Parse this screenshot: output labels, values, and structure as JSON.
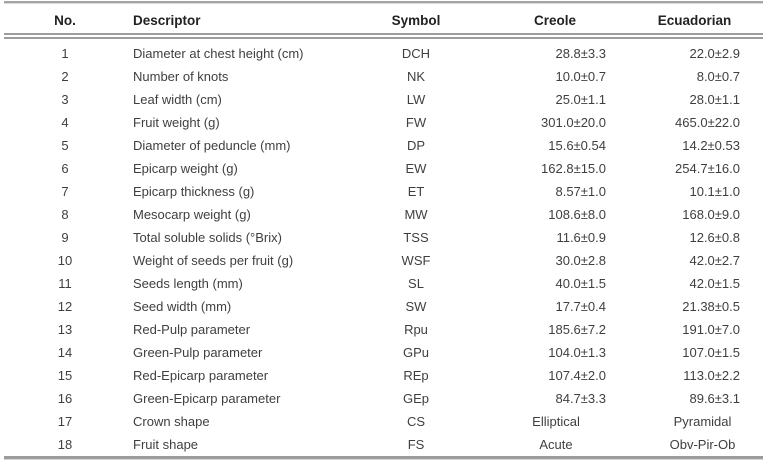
{
  "table": {
    "columns": [
      {
        "key": "no",
        "label": "No."
      },
      {
        "key": "descriptor",
        "label": "Descriptor"
      },
      {
        "key": "symbol",
        "label": "Symbol"
      },
      {
        "key": "creole",
        "label": "Creole"
      },
      {
        "key": "ecuadorian",
        "label": "Ecuadorian"
      }
    ],
    "rows": [
      {
        "no": "1",
        "descriptor": "Diameter at chest height (cm)",
        "symbol": "DCH",
        "creole": "28.8±3.3",
        "ecuadorian": "22.0±2.9"
      },
      {
        "no": "2",
        "descriptor": "Number of knots",
        "symbol": "NK",
        "creole": "10.0±0.7",
        "ecuadorian": "8.0±0.7"
      },
      {
        "no": "3",
        "descriptor": "Leaf width (cm)",
        "symbol": "LW",
        "creole": "25.0±1.1",
        "ecuadorian": "28.0±1.1"
      },
      {
        "no": "4",
        "descriptor": "Fruit weight (g)",
        "symbol": "FW",
        "creole": "301.0±20.0",
        "ecuadorian": "465.0±22.0"
      },
      {
        "no": "5",
        "descriptor": "Diameter of peduncle (mm)",
        "symbol": "DP",
        "creole": "15.6±0.54",
        "ecuadorian": "14.2±0.53"
      },
      {
        "no": "6",
        "descriptor": "Epicarp weight (g)",
        "symbol": "EW",
        "creole": "162.8±15.0",
        "ecuadorian": "254.7±16.0"
      },
      {
        "no": "7",
        "descriptor": "Epicarp thickness (g)",
        "symbol": "ET",
        "creole": "8.57±1.0",
        "ecuadorian": "10.1±1.0"
      },
      {
        "no": "8",
        "descriptor": "Mesocarp weight (g)",
        "symbol": "MW",
        "creole": "108.6±8.0",
        "ecuadorian": "168.0±9.0"
      },
      {
        "no": "9",
        "descriptor": "Total soluble solids (°Brix)",
        "symbol": "TSS",
        "creole": "11.6±0.9",
        "ecuadorian": "12.6±0.8"
      },
      {
        "no": "10",
        "descriptor": "Weight of seeds per fruit (g)",
        "symbol": "WSF",
        "creole": "30.0±2.8",
        "ecuadorian": "42.0±2.7"
      },
      {
        "no": "11",
        "descriptor": "Seeds length (mm)",
        "symbol": "SL",
        "creole": "40.0±1.5",
        "ecuadorian": "42.0±1.5"
      },
      {
        "no": "12",
        "descriptor": "Seed width (mm)",
        "symbol": "SW",
        "creole": "17.7±0.4",
        "ecuadorian": "21.38±0.5"
      },
      {
        "no": "13",
        "descriptor": "Red-Pulp parameter",
        "symbol": "Rpu",
        "creole": "185.6±7.2",
        "ecuadorian": "191.0±7.0"
      },
      {
        "no": "14",
        "descriptor": "Green-Pulp parameter",
        "symbol": "GPu",
        "creole": "104.0±1.3",
        "ecuadorian": "107.0±1.5"
      },
      {
        "no": "15",
        "descriptor": "Red-Epicarp parameter",
        "symbol": "REp",
        "creole": "107.4±2.0",
        "ecuadorian": "113.0±2.2"
      },
      {
        "no": "16",
        "descriptor": "Green-Epicarp parameter",
        "symbol": "GEp",
        "creole": "84.7±3.3",
        "ecuadorian": "89.6±3.1"
      },
      {
        "no": "17",
        "descriptor": "Crown shape",
        "symbol": "CS",
        "creole": "Elliptical",
        "ecuadorian": "Pyramidal"
      },
      {
        "no": "18",
        "descriptor": "Fruit shape",
        "symbol": "FS",
        "creole": "Acute",
        "ecuadorian": "Obv-Pir-Ob"
      }
    ]
  },
  "colors": {
    "rule_gray": "#9c9c9c",
    "rule_light_echo": "#d9d9d9",
    "body_text": "#3f3f3f",
    "header_text": "#222222",
    "background": "#ffffff"
  }
}
